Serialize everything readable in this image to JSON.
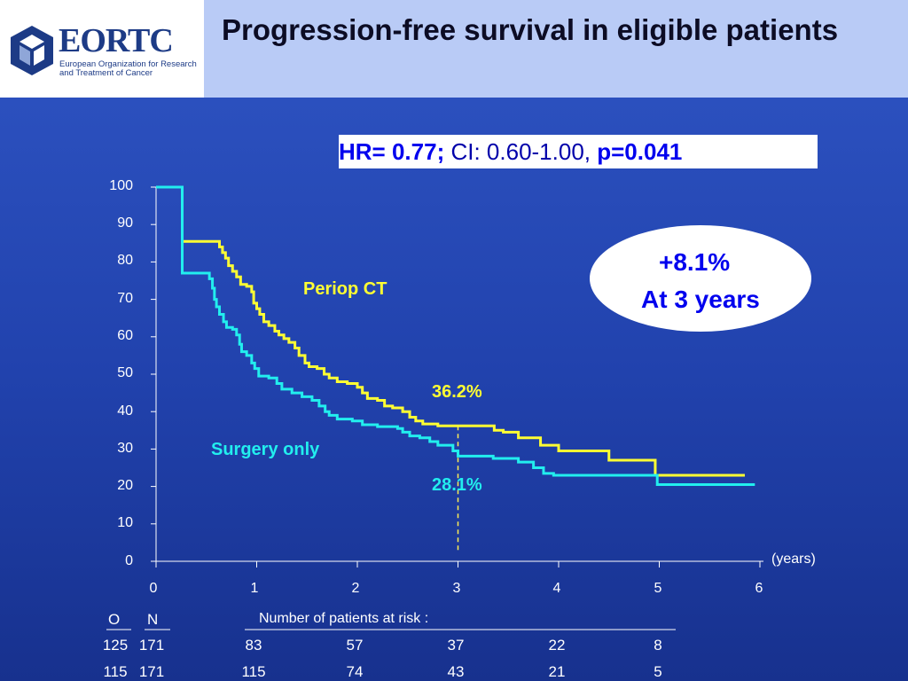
{
  "header": {
    "logo_text": "EORTC",
    "logo_subtitle": "European Organization for Research and Treatment of Cancer",
    "title": "Progression-free survival in eligible patients"
  },
  "stats_box": {
    "hr_label": "HR= 0.77",
    "separator": ";",
    "ci_text": " CI: 0.60-1.00, ",
    "p_text": "p=0.041"
  },
  "annotation": {
    "line1": "+8.1%",
    "line2": "At 3 years"
  },
  "labels": {
    "periop": "Periop CT",
    "surgery": "Surgery only",
    "periop_at3": "36.2%",
    "surgery_at3": "28.1%",
    "x_unit": "(years)"
  },
  "risk_table": {
    "title": "Number of patients at risk :",
    "header_o": "O",
    "header_n": "N",
    "rows": [
      {
        "o": "125",
        "n": "171",
        "values": [
          "83",
          "57",
          "37",
          "22",
          "8"
        ]
      },
      {
        "o": "115",
        "n": "171",
        "values": [
          "115",
          "74",
          "43",
          "21",
          "5"
        ]
      }
    ]
  },
  "colors": {
    "periop": "#ffff33",
    "surgery": "#22eeee",
    "marker": "#ffee55"
  },
  "chart_data": {
    "type": "line",
    "title": "Progression-free survival in eligible patients",
    "xlabel": "(years)",
    "ylabel": "",
    "xlim": [
      0,
      6
    ],
    "ylim": [
      0,
      100
    ],
    "x_ticks": [
      "0",
      "1",
      "2",
      "3",
      "4",
      "5",
      "6"
    ],
    "y_ticks": [
      "0",
      "10",
      "20",
      "30",
      "40",
      "50",
      "60",
      "70",
      "80",
      "90",
      "100"
    ],
    "grid": false,
    "step": true,
    "series": [
      {
        "name": "Periop CT",
        "points": [
          [
            0,
            100
          ],
          [
            0.26,
            100
          ],
          [
            0.26,
            85.5
          ],
          [
            0.6,
            85.5
          ],
          [
            0.63,
            84
          ],
          [
            0.66,
            82.5
          ],
          [
            0.69,
            81
          ],
          [
            0.72,
            79
          ],
          [
            0.76,
            77.5
          ],
          [
            0.8,
            76
          ],
          [
            0.84,
            74
          ],
          [
            0.9,
            73.5
          ],
          [
            0.95,
            72
          ],
          [
            0.97,
            69
          ],
          [
            1.0,
            67.5
          ],
          [
            1.03,
            66
          ],
          [
            1.07,
            64
          ],
          [
            1.12,
            63
          ],
          [
            1.18,
            61.5
          ],
          [
            1.22,
            60.5
          ],
          [
            1.27,
            59.5
          ],
          [
            1.32,
            58.5
          ],
          [
            1.38,
            57
          ],
          [
            1.42,
            55
          ],
          [
            1.48,
            53
          ],
          [
            1.52,
            52
          ],
          [
            1.6,
            51.5
          ],
          [
            1.67,
            50
          ],
          [
            1.72,
            49
          ],
          [
            1.8,
            48
          ],
          [
            1.9,
            47.5
          ],
          [
            2.0,
            46.5
          ],
          [
            2.05,
            45
          ],
          [
            2.1,
            43.5
          ],
          [
            2.2,
            43
          ],
          [
            2.27,
            41.5
          ],
          [
            2.35,
            41
          ],
          [
            2.45,
            40
          ],
          [
            2.52,
            38.5
          ],
          [
            2.58,
            37.5
          ],
          [
            2.65,
            36.7
          ],
          [
            2.8,
            36.2
          ],
          [
            3.3,
            36.2
          ],
          [
            3.36,
            35
          ],
          [
            3.45,
            34.5
          ],
          [
            3.6,
            33
          ],
          [
            3.82,
            31
          ],
          [
            4.0,
            29.5
          ],
          [
            4.45,
            29.5
          ],
          [
            4.5,
            27
          ],
          [
            4.95,
            27
          ],
          [
            4.96,
            23
          ],
          [
            5.85,
            23
          ]
        ]
      },
      {
        "name": "Surgery only",
        "points": [
          [
            0,
            100
          ],
          [
            0.26,
            100
          ],
          [
            0.26,
            77
          ],
          [
            0.5,
            77
          ],
          [
            0.53,
            75.5
          ],
          [
            0.56,
            73
          ],
          [
            0.58,
            70
          ],
          [
            0.6,
            68
          ],
          [
            0.63,
            66
          ],
          [
            0.67,
            64
          ],
          [
            0.7,
            62.5
          ],
          [
            0.76,
            62
          ],
          [
            0.8,
            60.5
          ],
          [
            0.83,
            58
          ],
          [
            0.85,
            56
          ],
          [
            0.9,
            55
          ],
          [
            0.95,
            53
          ],
          [
            0.98,
            51.5
          ],
          [
            1.02,
            49.5
          ],
          [
            1.12,
            49
          ],
          [
            1.2,
            47.5
          ],
          [
            1.25,
            46
          ],
          [
            1.35,
            45
          ],
          [
            1.45,
            44
          ],
          [
            1.55,
            43
          ],
          [
            1.62,
            41.5
          ],
          [
            1.68,
            40
          ],
          [
            1.72,
            39
          ],
          [
            1.8,
            38
          ],
          [
            1.95,
            37.5
          ],
          [
            2.05,
            36.5
          ],
          [
            2.2,
            36
          ],
          [
            2.4,
            35.5
          ],
          [
            2.45,
            34.5
          ],
          [
            2.52,
            33.5
          ],
          [
            2.62,
            33
          ],
          [
            2.72,
            32
          ],
          [
            2.8,
            31
          ],
          [
            2.95,
            29.5
          ],
          [
            3.0,
            28.1
          ],
          [
            3.35,
            27.5
          ],
          [
            3.6,
            26.5
          ],
          [
            3.75,
            25
          ],
          [
            3.85,
            23.5
          ],
          [
            3.95,
            23
          ],
          [
            4.95,
            23
          ],
          [
            4.98,
            20.5
          ],
          [
            5.95,
            20.5
          ]
        ]
      }
    ],
    "annotations": [
      "36.2%",
      "28.1%",
      "+8.1% At 3 years"
    ]
  }
}
